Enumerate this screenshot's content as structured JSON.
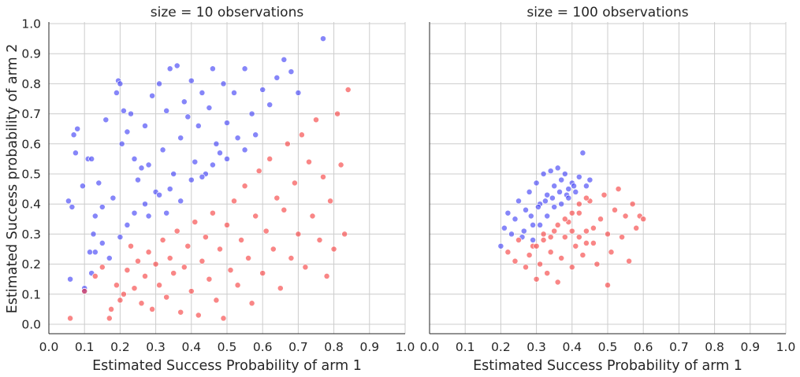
{
  "chart_data": [
    {
      "type": "scatter",
      "title": "size = 10 observations",
      "xlabel": "Estimated Success Probability of arm 1",
      "ylabel": "Estimated Success probability of arm 2",
      "xlim": [
        0,
        1
      ],
      "ylim": [
        -0.03,
        1.0
      ],
      "xticks": [
        "0.0",
        "0.1",
        "0.2",
        "0.3",
        "0.4",
        "0.5",
        "0.6",
        "0.7",
        "0.8",
        "0.9",
        "1.0"
      ],
      "yticks": [
        "0.0",
        "0.1",
        "0.2",
        "0.3",
        "0.4",
        "0.5",
        "0.6",
        "0.7",
        "0.8",
        "0.9",
        "1.0"
      ],
      "grid": true,
      "colors": {
        "arm2_higher": "#3b3bf5",
        "arm1_higher": "#f53b3b"
      },
      "series": [
        {
          "color_key": "arm2_higher",
          "points": [
            [
              0.055,
              0.41
            ],
            [
              0.065,
              0.39
            ],
            [
              0.07,
              0.63
            ],
            [
              0.075,
              0.57
            ],
            [
              0.08,
              0.65
            ],
            [
              0.095,
              0.46
            ],
            [
              0.1,
              0.12
            ],
            [
              0.11,
              0.55
            ],
            [
              0.115,
              0.24
            ],
            [
              0.12,
              0.55
            ],
            [
              0.125,
              0.3
            ],
            [
              0.13,
              0.36
            ],
            [
              0.14,
              0.47
            ],
            [
              0.15,
              0.39
            ],
            [
              0.16,
              0.68
            ],
            [
              0.17,
              0.22
            ],
            [
              0.18,
              0.42
            ],
            [
              0.19,
              0.77
            ],
            [
              0.195,
              0.81
            ],
            [
              0.2,
              0.8
            ],
            [
              0.205,
              0.6
            ],
            [
              0.21,
              0.71
            ],
            [
              0.22,
              0.64
            ],
            [
              0.23,
              0.7
            ],
            [
              0.24,
              0.55
            ],
            [
              0.25,
              0.48
            ],
            [
              0.26,
              0.52
            ],
            [
              0.27,
              0.66
            ],
            [
              0.28,
              0.53
            ],
            [
              0.29,
              0.76
            ],
            [
              0.3,
              0.44
            ],
            [
              0.31,
              0.8
            ],
            [
              0.32,
              0.58
            ],
            [
              0.33,
              0.71
            ],
            [
              0.34,
              0.85
            ],
            [
              0.35,
              0.5
            ],
            [
              0.36,
              0.86
            ],
            [
              0.37,
              0.62
            ],
            [
              0.38,
              0.74
            ],
            [
              0.39,
              0.69
            ],
            [
              0.4,
              0.81
            ],
            [
              0.41,
              0.54
            ],
            [
              0.42,
              0.66
            ],
            [
              0.43,
              0.77
            ],
            [
              0.44,
              0.5
            ],
            [
              0.45,
              0.72
            ],
            [
              0.46,
              0.85
            ],
            [
              0.47,
              0.6
            ],
            [
              0.48,
              0.57
            ],
            [
              0.49,
              0.8
            ],
            [
              0.5,
              0.67
            ],
            [
              0.52,
              0.77
            ],
            [
              0.53,
              0.62
            ],
            [
              0.55,
              0.85
            ],
            [
              0.57,
              0.7
            ],
            [
              0.6,
              0.78
            ],
            [
              0.62,
              0.73
            ],
            [
              0.64,
              0.82
            ],
            [
              0.66,
              0.88
            ],
            [
              0.68,
              0.84
            ],
            [
              0.7,
              0.77
            ],
            [
              0.77,
              0.95
            ],
            [
              0.24,
              0.37
            ],
            [
              0.27,
              0.4
            ],
            [
              0.31,
              0.43
            ],
            [
              0.34,
              0.45
            ],
            [
              0.37,
              0.41
            ],
            [
              0.4,
              0.48
            ],
            [
              0.43,
              0.49
            ],
            [
              0.46,
              0.53
            ],
            [
              0.5,
              0.55
            ],
            [
              0.55,
              0.58
            ],
            [
              0.58,
              0.63
            ],
            [
              0.15,
              0.27
            ],
            [
              0.13,
              0.24
            ],
            [
              0.12,
              0.17
            ],
            [
              0.1,
              0.11
            ],
            [
              0.06,
              0.15
            ],
            [
              0.2,
              0.29
            ],
            [
              0.22,
              0.33
            ],
            [
              0.28,
              0.36
            ],
            [
              0.33,
              0.37
            ]
          ]
        },
        {
          "color_key": "arm1_higher",
          "points": [
            [
              0.06,
              0.02
            ],
            [
              0.1,
              0.11
            ],
            [
              0.13,
              0.16
            ],
            [
              0.15,
              0.19
            ],
            [
              0.17,
              0.02
            ],
            [
              0.175,
              0.05
            ],
            [
              0.19,
              0.13
            ],
            [
              0.2,
              0.08
            ],
            [
              0.21,
              0.1
            ],
            [
              0.22,
              0.18
            ],
            [
              0.23,
              0.26
            ],
            [
              0.24,
              0.12
            ],
            [
              0.25,
              0.21
            ],
            [
              0.26,
              0.07
            ],
            [
              0.27,
              0.16
            ],
            [
              0.28,
              0.24
            ],
            [
              0.29,
              0.05
            ],
            [
              0.3,
              0.2
            ],
            [
              0.31,
              0.13
            ],
            [
              0.32,
              0.28
            ],
            [
              0.33,
              0.09
            ],
            [
              0.34,
              0.22
            ],
            [
              0.35,
              0.17
            ],
            [
              0.36,
              0.31
            ],
            [
              0.37,
              0.04
            ],
            [
              0.38,
              0.19
            ],
            [
              0.39,
              0.26
            ],
            [
              0.4,
              0.11
            ],
            [
              0.41,
              0.34
            ],
            [
              0.42,
              0.03
            ],
            [
              0.43,
              0.21
            ],
            [
              0.44,
              0.29
            ],
            [
              0.45,
              0.15
            ],
            [
              0.46,
              0.37
            ],
            [
              0.47,
              0.08
            ],
            [
              0.48,
              0.25
            ],
            [
              0.49,
              0.02
            ],
            [
              0.5,
              0.33
            ],
            [
              0.51,
              0.18
            ],
            [
              0.52,
              0.41
            ],
            [
              0.53,
              0.13
            ],
            [
              0.54,
              0.28
            ],
            [
              0.55,
              0.46
            ],
            [
              0.56,
              0.22
            ],
            [
              0.57,
              0.07
            ],
            [
              0.58,
              0.36
            ],
            [
              0.59,
              0.51
            ],
            [
              0.6,
              0.17
            ],
            [
              0.61,
              0.31
            ],
            [
              0.62,
              0.55
            ],
            [
              0.63,
              0.25
            ],
            [
              0.64,
              0.42
            ],
            [
              0.65,
              0.12
            ],
            [
              0.66,
              0.38
            ],
            [
              0.67,
              0.6
            ],
            [
              0.68,
              0.22
            ],
            [
              0.69,
              0.47
            ],
            [
              0.7,
              0.3
            ],
            [
              0.71,
              0.63
            ],
            [
              0.72,
              0.19
            ],
            [
              0.73,
              0.54
            ],
            [
              0.74,
              0.36
            ],
            [
              0.75,
              0.68
            ],
            [
              0.76,
              0.28
            ],
            [
              0.77,
              0.49
            ],
            [
              0.78,
              0.16
            ],
            [
              0.79,
              0.41
            ],
            [
              0.8,
              0.25
            ],
            [
              0.81,
              0.7
            ],
            [
              0.82,
              0.53
            ],
            [
              0.83,
              0.3
            ],
            [
              0.84,
              0.78
            ]
          ]
        }
      ]
    },
    {
      "type": "scatter",
      "title": "size = 100 observations",
      "xlabel": "Estimated Success Probability of arm 1",
      "xlim": [
        0,
        1
      ],
      "ylim": [
        -0.03,
        1.0
      ],
      "xticks": [
        "0.0",
        "0.1",
        "0.2",
        "0.3",
        "0.4",
        "0.5",
        "0.6",
        "0.7",
        "0.8",
        "0.9",
        "1.0"
      ],
      "grid": true,
      "colors": {
        "arm2_higher": "#3b3bf5",
        "arm1_higher": "#f53b3b"
      },
      "series": [
        {
          "color_key": "arm2_higher",
          "points": [
            [
              0.2,
              0.26
            ],
            [
              0.21,
              0.32
            ],
            [
              0.22,
              0.37
            ],
            [
              0.23,
              0.3
            ],
            [
              0.24,
              0.35
            ],
            [
              0.25,
              0.41
            ],
            [
              0.26,
              0.29
            ],
            [
              0.27,
              0.38
            ],
            [
              0.28,
              0.44
            ],
            [
              0.29,
              0.33
            ],
            [
              0.3,
              0.47
            ],
            [
              0.31,
              0.4
            ],
            [
              0.32,
              0.5
            ],
            [
              0.33,
              0.43
            ],
            [
              0.34,
              0.51
            ],
            [
              0.35,
              0.46
            ],
            [
              0.36,
              0.52
            ],
            [
              0.37,
              0.48
            ],
            [
              0.38,
              0.5
            ],
            [
              0.39,
              0.45
            ],
            [
              0.4,
              0.47
            ],
            [
              0.41,
              0.44
            ],
            [
              0.42,
              0.49
            ],
            [
              0.43,
              0.57
            ],
            [
              0.44,
              0.46
            ],
            [
              0.45,
              0.48
            ],
            [
              0.265,
              0.31
            ],
            [
              0.285,
              0.36
            ],
            [
              0.305,
              0.39
            ],
            [
              0.325,
              0.41
            ],
            [
              0.345,
              0.42
            ],
            [
              0.365,
              0.44
            ],
            [
              0.385,
              0.43
            ],
            [
              0.405,
              0.46
            ],
            [
              0.29,
              0.28
            ],
            [
              0.31,
              0.33
            ],
            [
              0.33,
              0.36
            ],
            [
              0.35,
              0.39
            ],
            [
              0.37,
              0.4
            ],
            [
              0.39,
              0.42
            ]
          ]
        },
        {
          "color_key": "arm1_higher",
          "points": [
            [
              0.22,
              0.24
            ],
            [
              0.24,
              0.21
            ],
            [
              0.25,
              0.28
            ],
            [
              0.27,
              0.19
            ],
            [
              0.28,
              0.23
            ],
            [
              0.29,
              0.26
            ],
            [
              0.3,
              0.15
            ],
            [
              0.31,
              0.2
            ],
            [
              0.32,
              0.28
            ],
            [
              0.33,
              0.17
            ],
            [
              0.34,
              0.24
            ],
            [
              0.35,
              0.31
            ],
            [
              0.36,
              0.14
            ],
            [
              0.37,
              0.22
            ],
            [
              0.38,
              0.29
            ],
            [
              0.39,
              0.34
            ],
            [
              0.4,
              0.19
            ],
            [
              0.41,
              0.26
            ],
            [
              0.42,
              0.37
            ],
            [
              0.43,
              0.23
            ],
            [
              0.44,
              0.31
            ],
            [
              0.45,
              0.41
            ],
            [
              0.46,
              0.27
            ],
            [
              0.47,
              0.2
            ],
            [
              0.48,
              0.35
            ],
            [
              0.49,
              0.43
            ],
            [
              0.5,
              0.13
            ],
            [
              0.5,
              0.3
            ],
            [
              0.51,
              0.24
            ],
            [
              0.52,
              0.38
            ],
            [
              0.53,
              0.45
            ],
            [
              0.54,
              0.29
            ],
            [
              0.55,
              0.36
            ],
            [
              0.56,
              0.21
            ],
            [
              0.57,
              0.4
            ],
            [
              0.58,
              0.32
            ],
            [
              0.59,
              0.36
            ],
            [
              0.6,
              0.35
            ],
            [
              0.34,
              0.29
            ],
            [
              0.36,
              0.33
            ],
            [
              0.38,
              0.35
            ],
            [
              0.4,
              0.37
            ],
            [
              0.42,
              0.4
            ],
            [
              0.44,
              0.42
            ],
            [
              0.3,
              0.26
            ],
            [
              0.32,
              0.3
            ],
            [
              0.4,
              0.31
            ],
            [
              0.42,
              0.29
            ],
            [
              0.44,
              0.27
            ],
            [
              0.46,
              0.32
            ]
          ]
        }
      ]
    }
  ]
}
